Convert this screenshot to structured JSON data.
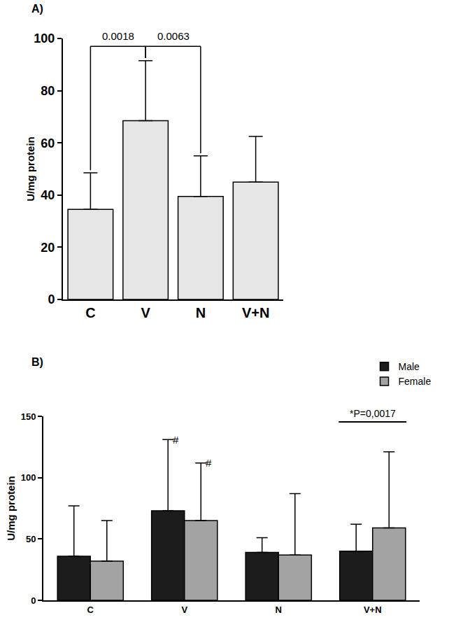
{
  "chart_data": [
    {
      "type": "bar",
      "title": "A)",
      "categories": [
        "C",
        "V",
        "N",
        "V+N"
      ],
      "values": [
        34.5,
        68.5,
        39.5,
        45
      ],
      "errors": [
        14,
        23,
        15.5,
        17.5
      ],
      "color": "#e6e6e6",
      "y_label": "U/mg protein",
      "ylim": [
        0,
        100
      ],
      "yticks": [
        0,
        20,
        40,
        60,
        80,
        100
      ],
      "grid": false,
      "annotations": [
        {
          "text": "0.0018",
          "from": "C",
          "to": "V"
        },
        {
          "text": "0.0063",
          "from": "V",
          "to": "N"
        }
      ]
    },
    {
      "type": "bar",
      "title": "B)",
      "categories": [
        "C",
        "V",
        "N",
        "V+N"
      ],
      "series": [
        {
          "name": "Male",
          "color": "#1c1c1c",
          "values": [
            36,
            73,
            39,
            40
          ],
          "errors": [
            41,
            58,
            12,
            22
          ]
        },
        {
          "name": "Female",
          "color": "#a3a3a3",
          "values": [
            32,
            65,
            37,
            59
          ],
          "errors": [
            33,
            47,
            50,
            62
          ]
        }
      ],
      "y_label": "U/mg protein",
      "ylim": [
        0,
        150
      ],
      "yticks": [
        0,
        50,
        100,
        150
      ],
      "grid": false,
      "legend": "top right",
      "annotations": [
        {
          "text": "#",
          "category": "V",
          "series": "Male"
        },
        {
          "text": "#",
          "category": "V",
          "series": "Female"
        },
        {
          "text": "*P=0,0017",
          "from": "V+N",
          "to": "V+N"
        }
      ]
    }
  ]
}
